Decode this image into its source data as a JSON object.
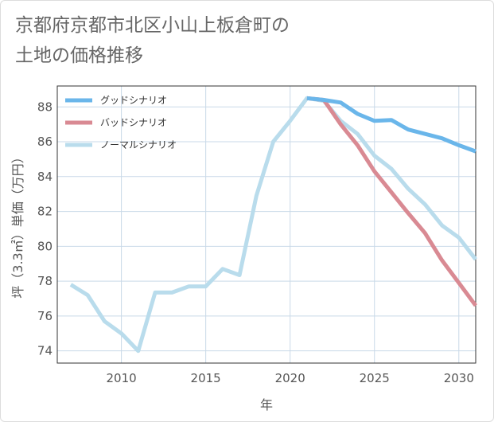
{
  "title": "京都府京都市北区小山上板倉町の\n土地の価格推移",
  "chart_data": {
    "type": "line",
    "title": "京都府京都市北区小山上板倉町の土地の価格推移",
    "xlabel": "年",
    "ylabel": "坪（3.3㎡）単価（万円）",
    "xlim": [
      2006.2,
      2031
    ],
    "ylim": [
      73.3,
      89.2
    ],
    "xticks": [
      2010,
      2015,
      2020,
      2025,
      2030
    ],
    "yticks": [
      74,
      76,
      78,
      80,
      82,
      84,
      86,
      88
    ],
    "grid": true,
    "legend_position": "top-left",
    "series": [
      {
        "name": "グッドシナリオ",
        "color": "#6ab6ea",
        "x": [
          2021,
          2022,
          2023,
          2024,
          2025,
          2026,
          2027,
          2028,
          2029,
          2030,
          2031
        ],
        "y": [
          88.5,
          88.4,
          88.25,
          87.6,
          87.2,
          87.25,
          86.7,
          86.45,
          86.2,
          85.8,
          85.45
        ]
      },
      {
        "name": "バッドシナリオ",
        "color": "#d98a93",
        "x": [
          2021,
          2022,
          2023,
          2024,
          2025,
          2026,
          2027,
          2028,
          2029,
          2030,
          2031
        ],
        "y": [
          88.5,
          88.4,
          87.0,
          85.8,
          84.3,
          83.1,
          81.9,
          80.75,
          79.2,
          77.9,
          76.6
        ]
      },
      {
        "name": "ノーマルシナリオ",
        "color": "#b9dcec",
        "x": [
          2007,
          2008,
          2009,
          2010,
          2011,
          2012,
          2013,
          2014,
          2015,
          2016,
          2017,
          2018,
          2019,
          2020,
          2021,
          2022,
          2023,
          2024,
          2025,
          2026,
          2027,
          2028,
          2029,
          2030,
          2031
        ],
        "y": [
          77.8,
          77.2,
          75.7,
          75.0,
          74.0,
          77.35,
          77.35,
          77.7,
          77.7,
          78.7,
          78.35,
          82.9,
          86.0,
          87.2,
          88.5,
          88.35,
          87.2,
          86.45,
          85.2,
          84.45,
          83.3,
          82.4,
          81.2,
          80.5,
          79.25
        ]
      }
    ]
  }
}
